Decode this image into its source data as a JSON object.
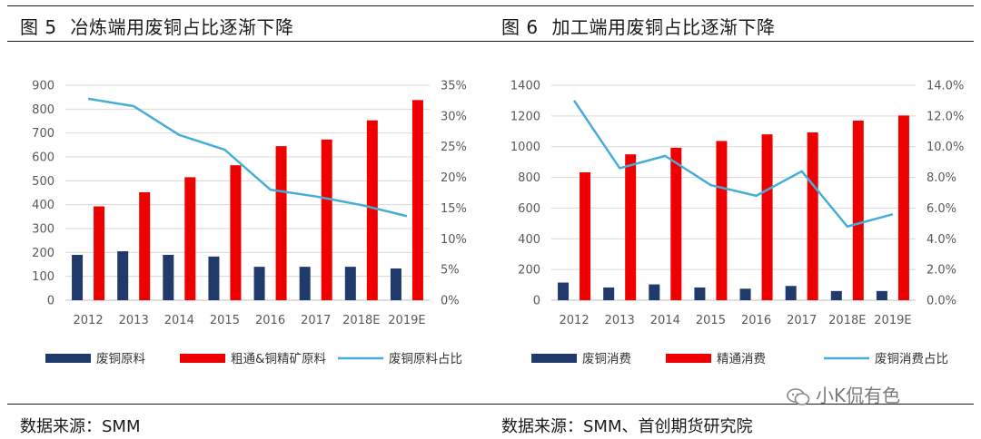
{
  "left": {
    "title_num": "图  5",
    "title_text": "冶炼端用废铜占比逐渐下降",
    "source": "数据来源：SMM"
  },
  "right": {
    "title_num": "图  6",
    "title_text": "加工端用废铜占比逐渐下降",
    "source": "数据来源：SMM、首创期货研究院"
  },
  "watermark": "小K侃有色",
  "colors": {
    "navy": "#1f3a6b",
    "red": "#ee0000",
    "line": "#45aed6",
    "grid": "#d9d9d9",
    "axis_text": "#595959"
  },
  "chart_data": [
    {
      "type": "bar",
      "categories": [
        "2012",
        "2013",
        "2014",
        "2015",
        "2016",
        "2017",
        "2018E",
        "2019E"
      ],
      "series": [
        {
          "name": "废铜原料",
          "kind": "bar",
          "axis": "left",
          "values": [
            190,
            205,
            190,
            183,
            140,
            140,
            140,
            133
          ]
        },
        {
          "name": "粗通&铜精矿原料",
          "kind": "bar",
          "axis": "left",
          "values": [
            393,
            452,
            515,
            565,
            645,
            673,
            753,
            838
          ]
        },
        {
          "name": "废铜原料占比",
          "kind": "line",
          "axis": "right",
          "values": [
            32.8,
            31.6,
            26.9,
            24.5,
            18.0,
            16.9,
            15.5,
            13.7
          ]
        }
      ],
      "ylim_left": [
        0,
        900
      ],
      "yticks_left": [
        "0",
        "100",
        "200",
        "300",
        "400",
        "500",
        "600",
        "700",
        "800",
        "900"
      ],
      "ylim_right": [
        0,
        35
      ],
      "yticks_right": [
        "0%",
        "5%",
        "10%",
        "15%",
        "20%",
        "25%",
        "30%",
        "35%"
      ],
      "grid": true,
      "legend": "bottom"
    },
    {
      "type": "bar",
      "categories": [
        "2012",
        "2013",
        "2014",
        "2015",
        "2016",
        "2017",
        "2018E",
        "2019E"
      ],
      "series": [
        {
          "name": "废铜消费",
          "kind": "bar",
          "axis": "left",
          "values": [
            115,
            83,
            103,
            83,
            75,
            93,
            60,
            60
          ]
        },
        {
          "name": "精通消费",
          "kind": "bar",
          "axis": "left",
          "values": [
            833,
            950,
            993,
            1037,
            1080,
            1093,
            1170,
            1203
          ]
        },
        {
          "name": "废铜消费占比",
          "kind": "line",
          "axis": "right",
          "values": [
            13.0,
            8.6,
            9.4,
            7.5,
            6.8,
            8.4,
            4.8,
            5.6
          ]
        }
      ],
      "ylim_left": [
        0,
        1400
      ],
      "yticks_left": [
        "0",
        "200",
        "400",
        "600",
        "800",
        "1000",
        "1200",
        "1400"
      ],
      "ylim_right": [
        0,
        14
      ],
      "yticks_right": [
        "0.0%",
        "2.0%",
        "4.0%",
        "6.0%",
        "8.0%",
        "10.0%",
        "12.0%",
        "14.0%"
      ],
      "grid": true,
      "legend": "bottom"
    }
  ]
}
